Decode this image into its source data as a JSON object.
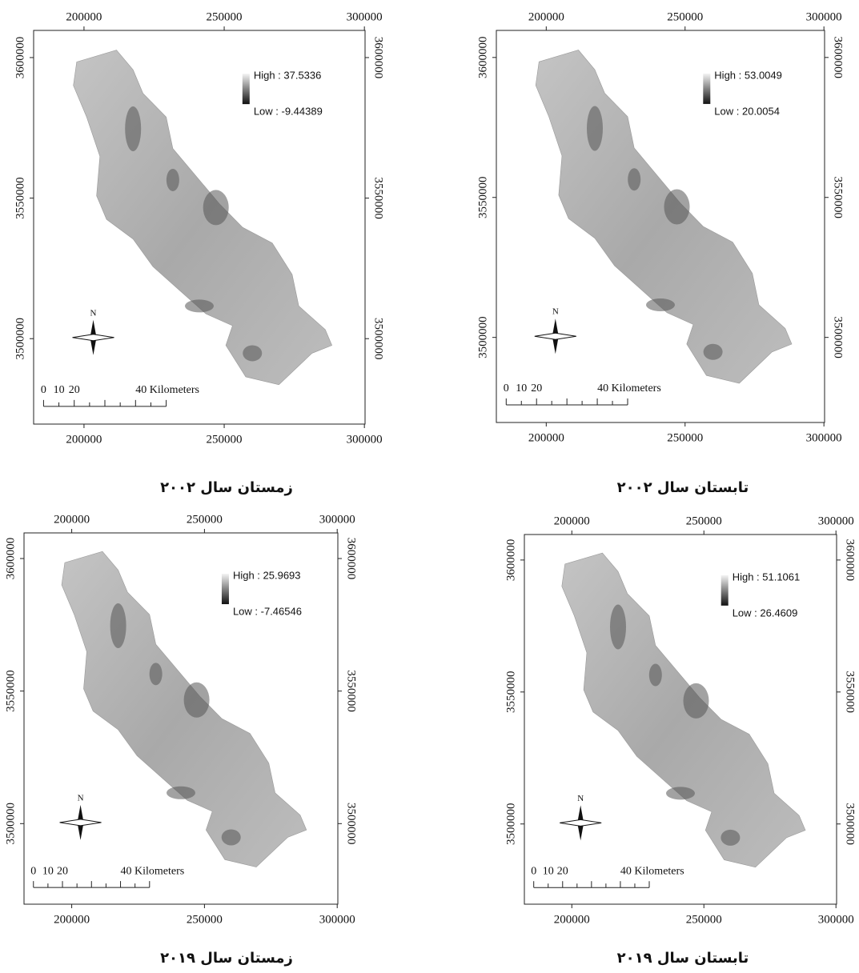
{
  "panels": [
    {
      "title": "زمستان سال ۲۰۰۲",
      "legend": {
        "high": "High : 37.5336",
        "low": "Low : -9.44389"
      },
      "xticks": [
        200000,
        250000,
        300000
      ],
      "yticks": [
        3600000,
        3550000,
        3500000
      ],
      "north": "N",
      "scale": [
        "0",
        "10",
        "20",
        "40 Kilometers"
      ]
    },
    {
      "title": "تابستان سال ۲۰۰۲",
      "legend": {
        "high": "High : 53.0049",
        "low": "Low : 20.0054"
      },
      "xticks": [
        200000,
        250000,
        300000
      ],
      "yticks": [
        3600000,
        3550000,
        3500000
      ],
      "north": "N",
      "scale": [
        "0",
        "10",
        "20",
        "40 Kilometers"
      ]
    },
    {
      "title": "زمستان سال ۲۰۱۹",
      "legend": {
        "high": "High : 25.9693",
        "low": "Low : -7.46546"
      },
      "xticks": [
        200000,
        250000,
        300000
      ],
      "yticks": [
        3600000,
        3550000,
        3500000
      ],
      "north": "N",
      "scale": [
        "0",
        "10",
        "20",
        "40 Kilometers"
      ]
    },
    {
      "title": "تابستان سال ۲۰۱۹",
      "legend": {
        "high": "High : 51.1061",
        "low": "Low : 26.4609"
      },
      "xticks": [
        200000,
        250000,
        300000
      ],
      "yticks": [
        3600000,
        3550000,
        3500000
      ],
      "north": "N",
      "scale": [
        "0",
        "10",
        "20",
        "40 Kilometers"
      ]
    }
  ]
}
